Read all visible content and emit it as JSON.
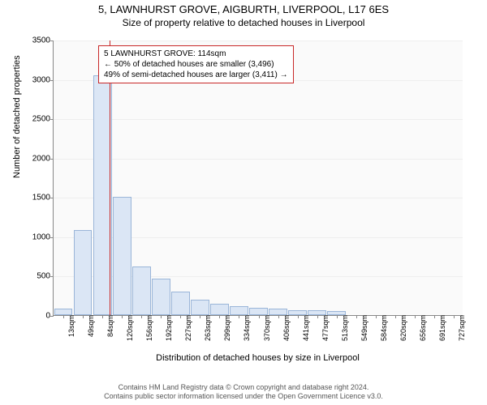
{
  "title": "5, LAWNHURST GROVE, AIGBURTH, LIVERPOOL, L17 6ES",
  "subtitle": "Size of property relative to detached houses in Liverpool",
  "ylabel": "Number of detached properties",
  "xlabel": "Distribution of detached houses by size in Liverpool",
  "footer1": "Contains HM Land Registry data © Crown copyright and database right 2024.",
  "footer2": "Contains public sector information licensed under the Open Government Licence v3.0.",
  "chart": {
    "type": "bar",
    "ylim": [
      0,
      3500
    ],
    "ytick_step": 500,
    "yticks": [
      0,
      500,
      1000,
      1500,
      2000,
      2500,
      3000,
      3500
    ],
    "xticks": [
      "13sqm",
      "49sqm",
      "84sqm",
      "120sqm",
      "156sqm",
      "192sqm",
      "227sqm",
      "263sqm",
      "299sqm",
      "334sqm",
      "370sqm",
      "406sqm",
      "441sqm",
      "477sqm",
      "513sqm",
      "549sqm",
      "584sqm",
      "620sqm",
      "656sqm",
      "691sqm",
      "727sqm"
    ],
    "values": [
      80,
      1080,
      3050,
      1500,
      620,
      460,
      300,
      200,
      140,
      110,
      90,
      80,
      60,
      60,
      50,
      0,
      0,
      0,
      0,
      0,
      0
    ],
    "bar_color": "#dbe6f5",
    "bar_border": "#9ab5d8",
    "background_color": "#fafafa",
    "grid_color": "#eeeeee",
    "axis_color": "#888888",
    "marker_x_index": 2.85,
    "marker_color": "#c82828",
    "label_fontsize": 11,
    "tick_fontsize": 10
  },
  "annotation": {
    "line1": "5 LAWNHURST GROVE: 114sqm",
    "line2": "← 50% of detached houses are smaller (3,496)",
    "line3": "49% of semi-detached houses are larger (3,411) →",
    "border_color": "#c82828",
    "background": "#ffffff"
  }
}
